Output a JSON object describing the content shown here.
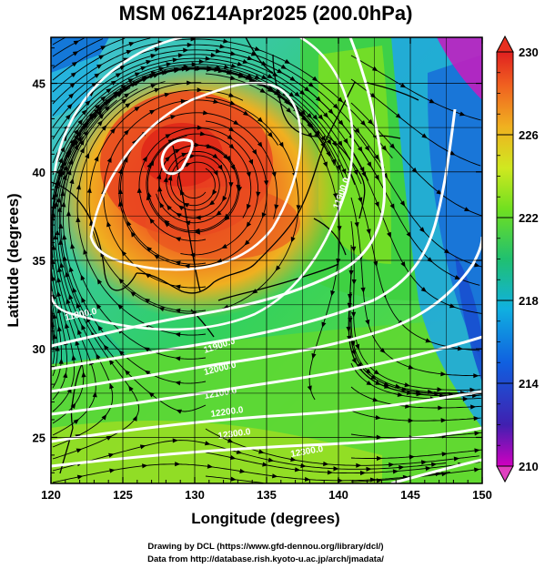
{
  "title": "MSM 06Z14Apr2025 (200.0hPa)",
  "x_axis": {
    "label": "Longitude (degrees)",
    "ticks": [
      "120",
      "125",
      "130",
      "135",
      "140",
      "145",
      "150"
    ],
    "range": [
      120,
      150
    ]
  },
  "y_axis": {
    "label": "Latitude  (degrees)",
    "ticks": [
      "25",
      "30",
      "35",
      "40",
      "45"
    ],
    "range": [
      22.4,
      47.6
    ]
  },
  "colorbar": {
    "ticks": [
      "230",
      "226",
      "222",
      "218",
      "214",
      "210"
    ],
    "range": [
      210,
      230
    ],
    "colors": [
      "#d000c0",
      "#2030c0",
      "#1090e0",
      "#10c0c0",
      "#20c060",
      "#50e020",
      "#c8e820",
      "#f0d020",
      "#f08020",
      "#e83020"
    ]
  },
  "contour_labels": [
    "11800.0",
    "11900.0",
    "12000.0",
    "12100.0",
    "12200.0",
    "12300.0",
    "11900.0",
    "12300.0"
  ],
  "credits": {
    "line1": "Drawing by DCL (https://www.gfd-dennou.org/library/dcl/)",
    "line2": "Data from http://database.rish.kyoto-u.ac.jp/arch/jmadata/"
  }
}
